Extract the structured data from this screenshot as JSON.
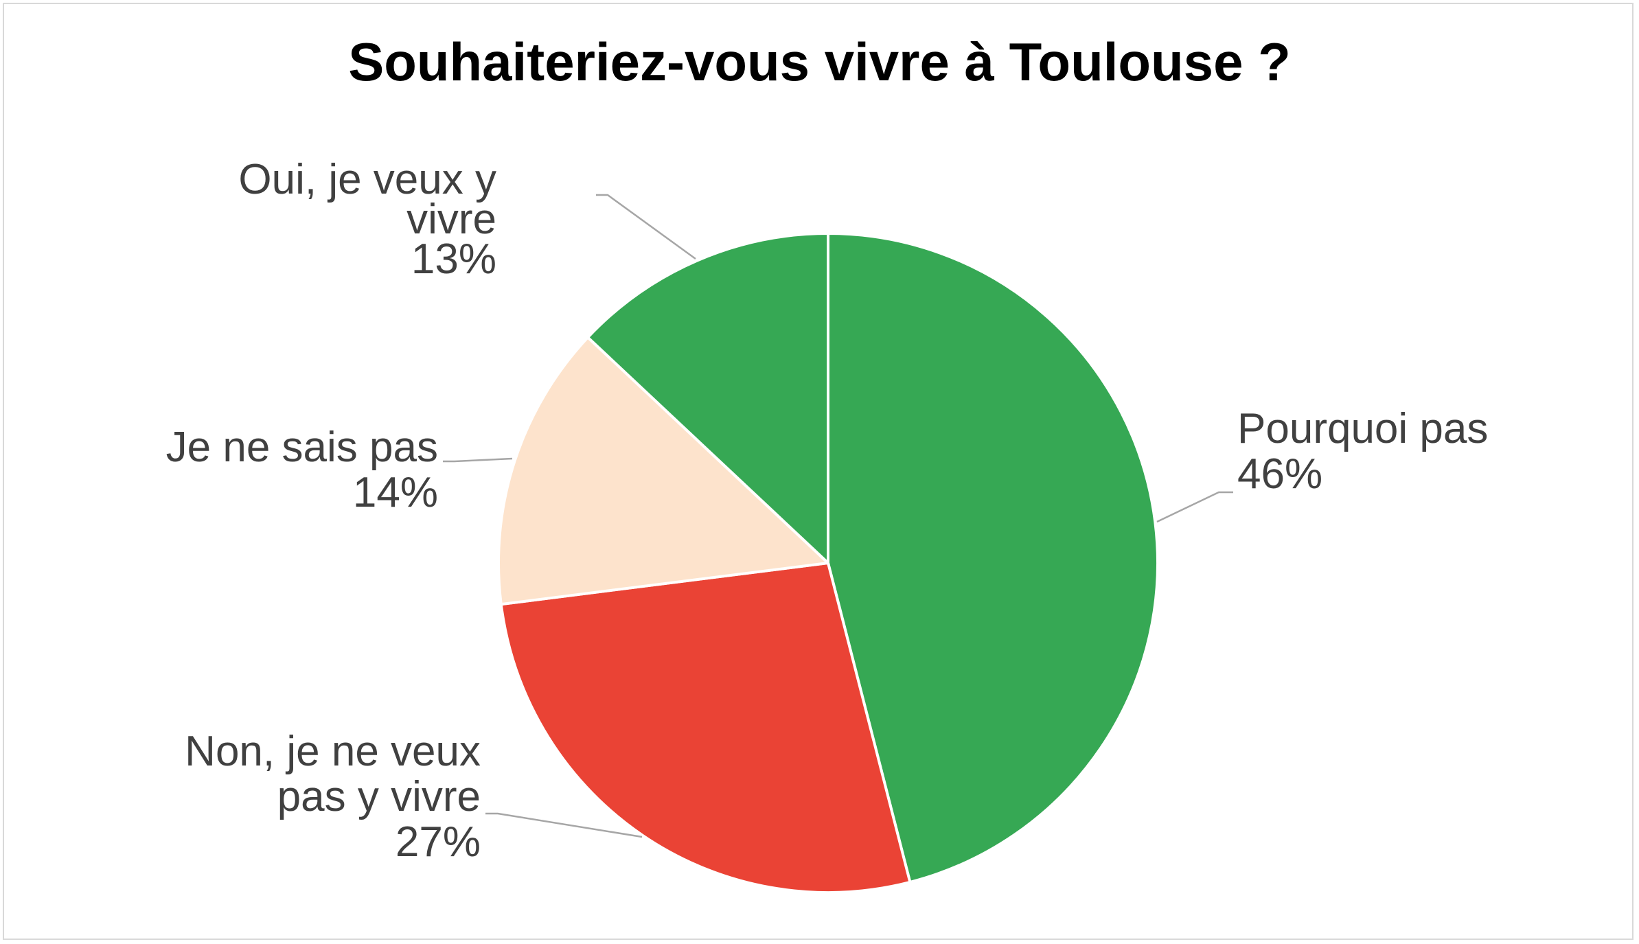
{
  "chart_data": {
    "type": "pie",
    "title": "Souhaiteriez-vous vivre à Toulouse ?",
    "slices": [
      {
        "label": "Pourquoi pas",
        "value": 46,
        "display": "46%",
        "color": "#36A854"
      },
      {
        "label": "Non, je ne veux pas y vivre",
        "value": 27,
        "display": "27%",
        "color": "#EA4335"
      },
      {
        "label": "Je ne sais pas",
        "value": 14,
        "display": "14%",
        "color": "#FDE3CC"
      },
      {
        "label": "Oui, je veux y vivre",
        "value": 13,
        "display": "13%",
        "color": "#36A854"
      }
    ],
    "start_angle_deg": 0,
    "direction": "clockwise",
    "slice_border_color": "#FFFFFF",
    "leader_line_color": "#A6A6A6",
    "label_color": "#404040"
  }
}
